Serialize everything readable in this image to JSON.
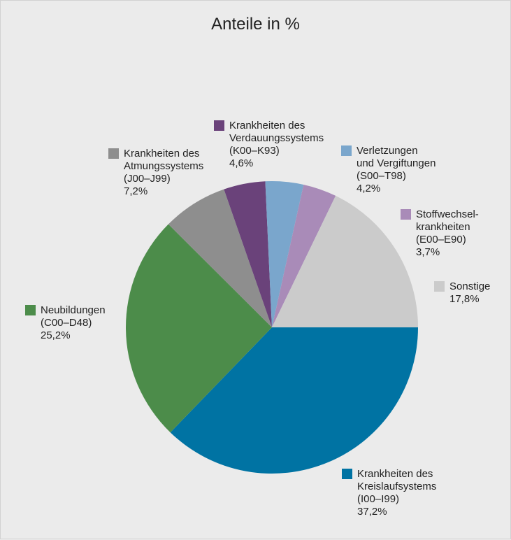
{
  "chart_data": {
    "type": "pie",
    "title": "Anteile in %",
    "slices": [
      {
        "id": "kreislauf",
        "lines": [
          "Krankheiten des",
          "Kreislaufsystems",
          "(I00–I99)",
          "37,2%"
        ],
        "value": 37.2,
        "color": "#0073a3"
      },
      {
        "id": "neubildungen",
        "lines": [
          "Neubildungen",
          "(C00–D48)",
          "25,2%"
        ],
        "value": 25.2,
        "color": "#4c8c4a"
      },
      {
        "id": "atmung",
        "lines": [
          "Krankheiten des",
          "Atmungssystems",
          "(J00–J99)",
          "7,2%"
        ],
        "value": 7.2,
        "color": "#8e8e8e"
      },
      {
        "id": "verdauung",
        "lines": [
          "Krankheiten des",
          "Verdauungssystems",
          "(K00–K93)",
          "4,6%"
        ],
        "value": 4.6,
        "color": "#6a427a"
      },
      {
        "id": "verletzungen",
        "lines": [
          "Verletzungen",
          "und Vergiftungen",
          "(S00–T98)",
          "4,2%"
        ],
        "value": 4.2,
        "color": "#7aa6cc"
      },
      {
        "id": "stoffwechsel",
        "lines": [
          "Stoffwechsel-",
          "krankheiten",
          "(E00–E90)",
          "3,7%"
        ],
        "value": 3.7,
        "color": "#a98bb8"
      },
      {
        "id": "sonstige",
        "lines": [
          "Sonstige",
          "17,8%"
        ],
        "value": 17.8,
        "color": "#cbcbcb"
      }
    ]
  }
}
